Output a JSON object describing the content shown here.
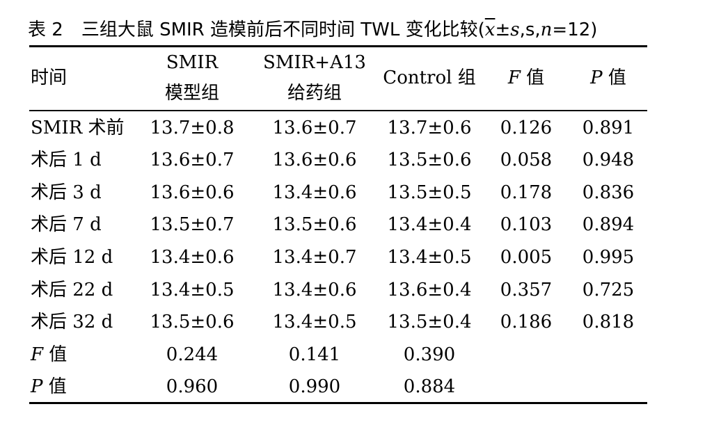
{
  "caption": {
    "number": "表 2",
    "text_before": "三组大鼠 SMIR 造模前后不同时间 TWL 变化比较(",
    "xbar": "x",
    "pm_s": "±",
    "s_italic": "s",
    "mid": ",s,",
    "n_italic": "n",
    "after": "=12)"
  },
  "header": {
    "time": "时间",
    "col1_line1": "SMIR",
    "col1_line2": "模型组",
    "col2_line1": "SMIR+A13",
    "col2_line2": "给药组",
    "col3": "Control 组",
    "col4_italic": "F",
    "col4_rest": " 值",
    "col5_italic": "P",
    "col5_rest": " 值"
  },
  "rows": [
    {
      "time": "SMIR 术前",
      "smir": "13.7±0.8",
      "a13": "13.6±0.7",
      "control": "13.7±0.6",
      "f": "0.126",
      "p": "0.891"
    },
    {
      "time": "术后 1 d",
      "smir": "13.6±0.7",
      "a13": "13.6±0.6",
      "control": "13.5±0.6",
      "f": "0.058",
      "p": "0.948"
    },
    {
      "time": "术后 3 d",
      "smir": "13.6±0.6",
      "a13": "13.4±0.6",
      "control": "13.5±0.5",
      "f": "0.178",
      "p": "0.836"
    },
    {
      "time": "术后 7 d",
      "smir": "13.5±0.7",
      "a13": "13.5±0.6",
      "control": "13.4±0.4",
      "f": "0.103",
      "p": "0.894"
    },
    {
      "time": "术后 12 d",
      "smir": "13.4±0.6",
      "a13": "13.4±0.7",
      "control": "13.4±0.5",
      "f": "0.005",
      "p": "0.995"
    },
    {
      "time": "术后 22 d",
      "smir": "13.4±0.5",
      "a13": "13.4±0.6",
      "control": "13.6±0.4",
      "f": "0.357",
      "p": "0.725"
    },
    {
      "time": "术后 32 d",
      "smir": "13.5±0.6",
      "a13": "13.4±0.5",
      "control": "13.5±0.4",
      "f": "0.186",
      "p": "0.818"
    }
  ],
  "f_row": {
    "label_italic": "F",
    "label_rest": " 值",
    "smir": "0.244",
    "a13": "0.141",
    "control": "0.390"
  },
  "p_row": {
    "label_italic": "P",
    "label_rest": " 值",
    "smir": "0.960",
    "a13": "0.990",
    "control": "0.884"
  }
}
